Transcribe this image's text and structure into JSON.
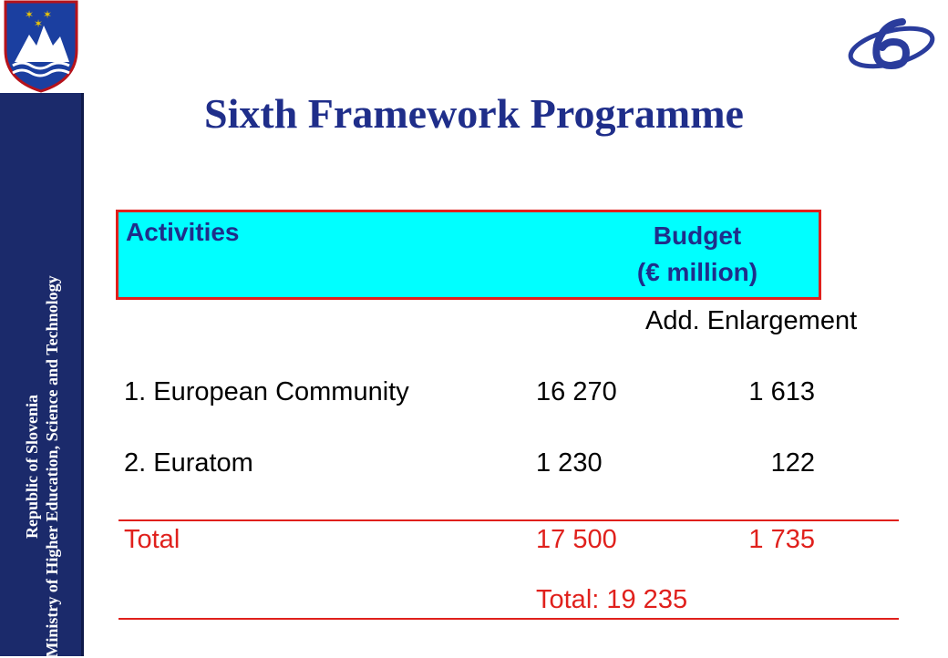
{
  "sidebar": {
    "line1": "Republic of Slovenia",
    "line2": "Ministry of Higher Education, Science and Technology"
  },
  "title": "Sixth Framework Programme",
  "table": {
    "header": {
      "activities": "Activities",
      "budget": "Budget",
      "unit": "(€ million)"
    },
    "subheader": "Add. Enlargement",
    "rows": [
      {
        "label": "1. European Community",
        "budget": "16 270",
        "enlargement": "1 613"
      },
      {
        "label": "2. Euratom",
        "budget": "1 230",
        "enlargement": "122"
      }
    ],
    "total": {
      "label": "Total",
      "budget": "17 500",
      "enlargement": "1 735"
    },
    "grand_total": "Total: 19 235"
  },
  "colors": {
    "title": "#1f2e8a",
    "header_bg": "#00ffff",
    "accent_red": "#e0201c",
    "sidebar_bg": "#1b2a6b"
  },
  "icons": {
    "crest": "slovenia-coat-of-arms-icon",
    "fp6_logo": "fp6-logo-icon"
  }
}
